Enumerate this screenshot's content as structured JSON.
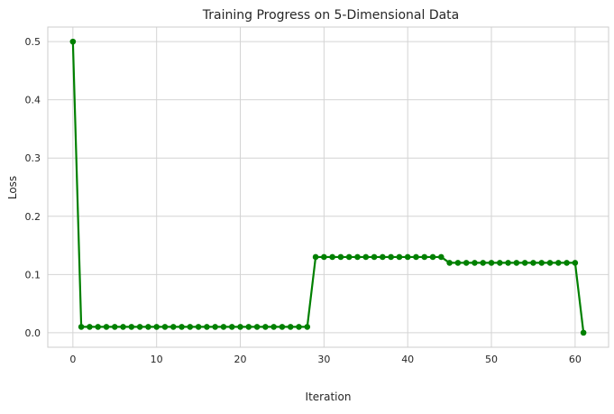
{
  "chart_data": {
    "type": "line",
    "title": "Training Progress on 5-Dimensional Data",
    "xlabel": "Iteration",
    "ylabel": "Loss",
    "xlim": [
      -3,
      64
    ],
    "ylim": [
      -0.025,
      0.525
    ],
    "xticks": [
      0,
      10,
      20,
      30,
      40,
      50,
      60
    ],
    "yticks": [
      0.0,
      0.1,
      0.2,
      0.3,
      0.4,
      0.5
    ],
    "ytick_labels": [
      "0.0",
      "0.1",
      "0.2",
      "0.3",
      "0.4",
      "0.5"
    ],
    "grid": true,
    "line_color": "#008000",
    "marker": "circle",
    "series": [
      {
        "x": [
          0,
          1,
          2,
          3,
          4,
          5,
          6,
          7,
          8,
          9,
          10,
          11,
          12,
          13,
          14,
          15,
          16,
          17,
          18,
          19,
          20,
          21,
          22,
          23,
          24,
          25,
          26,
          27,
          28,
          29,
          30,
          31,
          32,
          33,
          34,
          35,
          36,
          37,
          38,
          39,
          40,
          41,
          42,
          43,
          44,
          45,
          46,
          47,
          48,
          49,
          50,
          51,
          52,
          53,
          54,
          55,
          56,
          57,
          58,
          59,
          60,
          61
        ],
        "values": [
          0.5,
          0.01,
          0.01,
          0.01,
          0.01,
          0.01,
          0.01,
          0.01,
          0.01,
          0.01,
          0.01,
          0.01,
          0.01,
          0.01,
          0.01,
          0.01,
          0.01,
          0.01,
          0.01,
          0.01,
          0.01,
          0.01,
          0.01,
          0.01,
          0.01,
          0.01,
          0.01,
          0.01,
          0.01,
          0.13,
          0.13,
          0.13,
          0.13,
          0.13,
          0.13,
          0.13,
          0.13,
          0.13,
          0.13,
          0.13,
          0.13,
          0.13,
          0.13,
          0.13,
          0.13,
          0.12,
          0.12,
          0.12,
          0.12,
          0.12,
          0.12,
          0.12,
          0.12,
          0.12,
          0.12,
          0.12,
          0.12,
          0.12,
          0.12,
          0.12,
          0.12,
          0.0
        ]
      }
    ]
  }
}
